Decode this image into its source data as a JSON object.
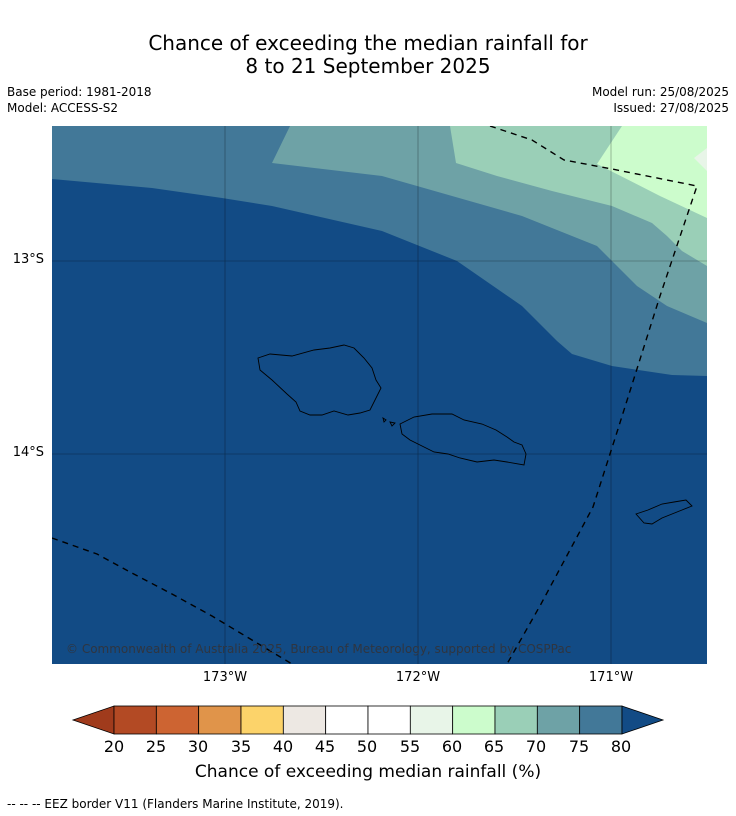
{
  "title": {
    "line1": "Chance of exceeding the median rainfall for",
    "line2": "8 to 21 September 2025"
  },
  "meta": {
    "base_period": "Base period: 1981-2018",
    "model": "Model: ACCESS-S2",
    "model_run": "Model run: 25/08/2025",
    "issued": "Issued: 27/08/2025"
  },
  "map": {
    "lat_labels": [
      "13°S",
      "14°S"
    ],
    "lon_labels": [
      "173°W",
      "172°W",
      "171°W"
    ],
    "copyright": "© Commonwealth of Australia 2025, Bureau of Meteorology, supported by COSPPac",
    "colors": {
      "c50_55": "#ffffff",
      "c55_60": "#e8f5e8",
      "c60_65": "#ccfccc",
      "c65_70": "#9acfb7",
      "c70_75": "#6ea2a6",
      "c75_80": "#427898",
      "c80plus": "#124b85"
    }
  },
  "colorbar": {
    "ticks": [
      "20",
      "25",
      "30",
      "35",
      "40",
      "45",
      "50",
      "55",
      "60",
      "65",
      "70",
      "75",
      "80"
    ],
    "colors": [
      "#a03b1c",
      "#b34a24",
      "#cd6432",
      "#e0944a",
      "#fcd36a",
      "#ede8e3",
      "#ffffff",
      "#ffffff",
      "#e8f5e8",
      "#ccfccc",
      "#9acfb7",
      "#6ea2a6",
      "#427898",
      "#124b85"
    ],
    "label": "Chance of exceeding median rainfall (%)"
  },
  "footnote": "--  --  -- EEZ border V11 (Flanders Marine Institute, 2019)."
}
